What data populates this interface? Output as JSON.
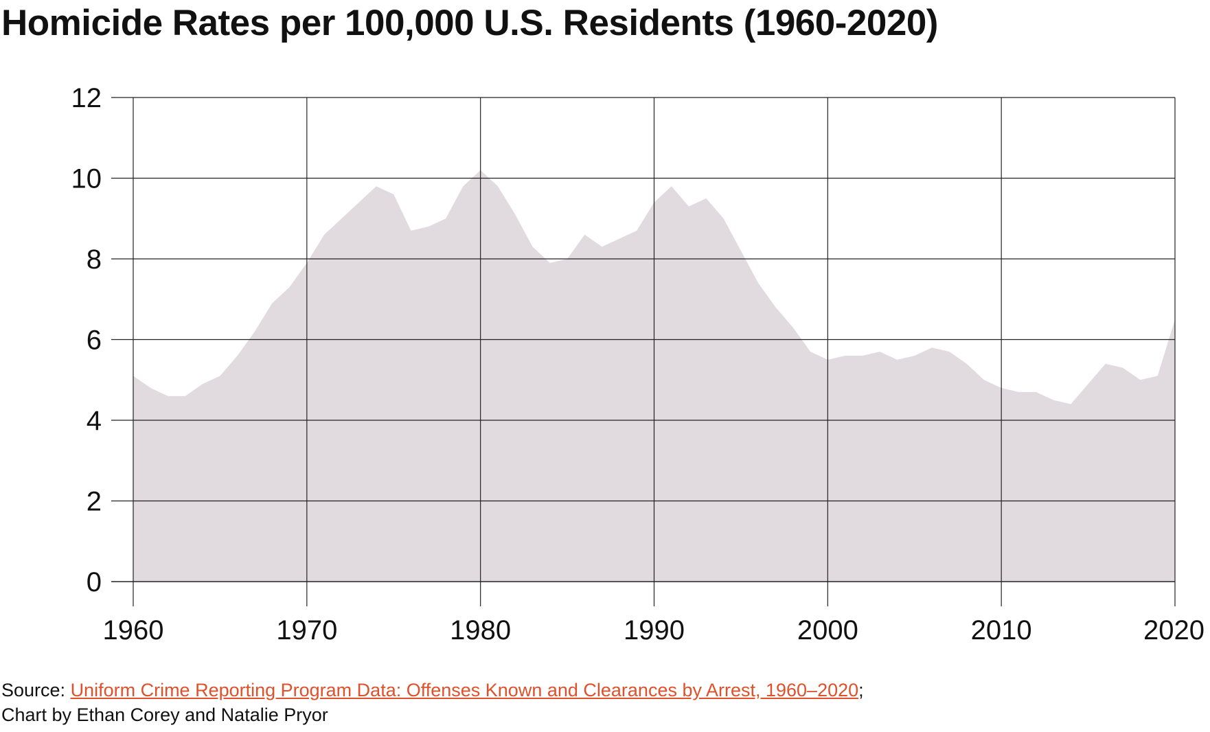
{
  "title": "Homicide Rates per 100,000 U.S. Residents (1960-2020)",
  "footer": {
    "source_prefix": "Source: ",
    "source_link_text": "Uniform Crime Reporting Program Data: Offenses Known and Clearances by Arrest, 1960–2020",
    "source_suffix": ";",
    "credit": "Chart by Ethan Corey and Natalie Pryor"
  },
  "colors": {
    "area_fill": "#e1dade",
    "grid": "#222222",
    "link": "#e0502a",
    "text": "#111111"
  },
  "chart_data": {
    "type": "area",
    "title": "Homicide Rates per 100,000 U.S. Residents (1960-2020)",
    "xlabel": "",
    "ylabel": "",
    "xlim": [
      1960,
      2020
    ],
    "ylim": [
      0,
      12
    ],
    "x_ticks": [
      "1960",
      "1970",
      "1980",
      "1990",
      "2000",
      "2010",
      "2020"
    ],
    "y_ticks": [
      "0",
      "2",
      "4",
      "6",
      "8",
      "10",
      "12"
    ],
    "grid": true,
    "legend": "none",
    "x": [
      1960,
      1961,
      1962,
      1963,
      1964,
      1965,
      1966,
      1967,
      1968,
      1969,
      1970,
      1971,
      1972,
      1973,
      1974,
      1975,
      1976,
      1977,
      1978,
      1979,
      1980,
      1981,
      1982,
      1983,
      1984,
      1985,
      1986,
      1987,
      1988,
      1989,
      1990,
      1991,
      1992,
      1993,
      1994,
      1995,
      1996,
      1997,
      1998,
      1999,
      2000,
      2001,
      2002,
      2003,
      2004,
      2005,
      2006,
      2007,
      2008,
      2009,
      2010,
      2011,
      2012,
      2013,
      2014,
      2015,
      2016,
      2017,
      2018,
      2019,
      2020
    ],
    "values": [
      5.1,
      4.8,
      4.6,
      4.6,
      4.9,
      5.1,
      5.6,
      6.2,
      6.9,
      7.3,
      7.9,
      8.6,
      9.0,
      9.4,
      9.8,
      9.6,
      8.7,
      8.8,
      9.0,
      9.8,
      10.2,
      9.8,
      9.1,
      8.3,
      7.9,
      8.0,
      8.6,
      8.3,
      8.5,
      8.7,
      9.4,
      9.8,
      9.3,
      9.5,
      9.0,
      8.2,
      7.4,
      6.8,
      6.3,
      5.7,
      5.5,
      5.6,
      5.6,
      5.7,
      5.5,
      5.6,
      5.8,
      5.7,
      5.4,
      5.0,
      4.8,
      4.7,
      4.7,
      4.5,
      4.4,
      4.9,
      5.4,
      5.3,
      5.0,
      5.1,
      6.5
    ]
  }
}
